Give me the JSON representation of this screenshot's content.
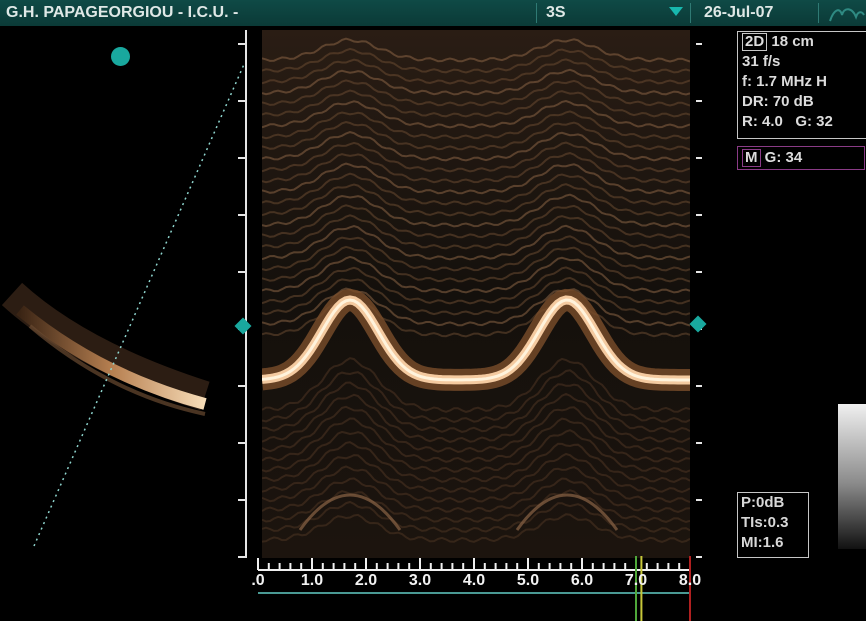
{
  "header": {
    "patient": "G.H. PAPAGEORGIOU - I.C.U. -",
    "probe": "3S",
    "date": "26-Jul-07"
  },
  "settings_2d": {
    "mode_badge": "2D",
    "depth": "18 cm",
    "frame_rate": "31 f/s",
    "frequency": "f: 1.7 MHz H",
    "dynamic_range": "DR: 70 dB",
    "reject_gain": "R: 4.0   G: 32"
  },
  "settings_m": {
    "mode_badge": "M",
    "gain": "G: 34"
  },
  "output": {
    "power": "P:0dB",
    "tis": "TIs:0.3",
    "mi": "MI:1.6"
  },
  "time_axis": {
    "ticks": [
      ".0",
      "1.0",
      "2.0",
      "3.0",
      "4.0",
      "5.0",
      "6.0",
      "7.0",
      "8.0"
    ],
    "markers": [
      {
        "t": 7.0,
        "color": "#4fa83a"
      },
      {
        "t": 7.1,
        "color": "#c8c83a"
      },
      {
        "t": 8.0,
        "color": "#b02020"
      }
    ]
  },
  "colors": {
    "header_bg": "#0b3a37",
    "accent": "#18b8ae",
    "m_mode_border": "#8a3b86",
    "echo": "#f4caa0"
  }
}
